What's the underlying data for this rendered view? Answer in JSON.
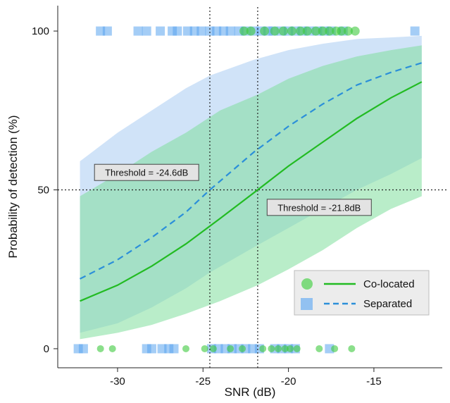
{
  "chart_data": {
    "type": "line",
    "xlabel": "SNR (dB)",
    "ylabel": "Probability of detection (%)",
    "xlim": [
      -33.5,
      -11
    ],
    "ylim": [
      -6,
      108
    ],
    "xticks": [
      -30,
      -25,
      -20,
      -15
    ],
    "xtick_labels": [
      "-30",
      "-25",
      "-20",
      "-15"
    ],
    "yticks": [
      0,
      50,
      100
    ],
    "ytick_labels": [
      "0",
      "50",
      "100"
    ],
    "reference_lines": {
      "y": 50,
      "x": [
        -24.6,
        -21.8
      ]
    },
    "series": [
      {
        "name": "Co-located",
        "style": "solid",
        "color": "#22bb22",
        "band_color": "#7fdf9c",
        "x": [
          -32.2,
          -30,
          -28,
          -26,
          -24,
          -21.8,
          -20,
          -18,
          -16,
          -14,
          -12.2
        ],
        "y": [
          15,
          20,
          26,
          33,
          41,
          50,
          57.5,
          65,
          72.5,
          79,
          84
        ],
        "lower": [
          3,
          5,
          7.5,
          11,
          15,
          20,
          25,
          31,
          38,
          44,
          48
        ],
        "upper": [
          48,
          55,
          62,
          68,
          75,
          80,
          85,
          89,
          92,
          94,
          95.5
        ]
      },
      {
        "name": "Separated",
        "style": "dashed",
        "color": "#2b8fd9",
        "band_color": "#bcd7f5",
        "x": [
          -32.2,
          -30,
          -28,
          -26,
          -24.6,
          -22,
          -20,
          -18,
          -16,
          -14,
          -12.2
        ],
        "y": [
          22,
          28,
          35,
          43,
          50,
          62,
          70,
          77,
          83,
          87,
          90
        ],
        "lower": [
          5,
          8,
          13,
          19,
          24,
          32,
          38,
          44,
          50,
          55,
          60
        ],
        "upper": [
          59,
          68,
          75,
          82,
          86,
          91,
          94,
          96,
          97.5,
          98,
          98.5
        ]
      }
    ],
    "raw_points": {
      "colocated_top": [
        -20.8,
        -20.3,
        -19.8,
        -19.3,
        -18.9,
        -18.4,
        -18.0,
        -17.6,
        -17.2,
        -16.9,
        -16.5,
        -16.1,
        -22.6,
        -22.2,
        -21.4
      ],
      "colocated_bottom": [
        -31.0,
        -30.3,
        -26.0,
        -24.9,
        -24.4,
        -23.4,
        -22.7,
        -21.5,
        -21.0,
        -20.6,
        -20.2,
        -19.9,
        -19.5,
        -18.2,
        -17.3,
        -16.3
      ],
      "separated_top": [
        -31.0,
        -30.6,
        -28.8,
        -28.3,
        -27.5,
        -26.8,
        -26.5,
        -25.9,
        -25.5,
        -25.1,
        -24.6,
        -24.2,
        -23.8,
        -23.4,
        -22.9,
        -22.5,
        -22.0,
        -21.6,
        -21.2,
        -20.9,
        -20.4,
        -20.0,
        -19.6,
        -19.2,
        -18.8,
        -18.3,
        -17.9,
        -17.5,
        -16.8,
        -12.6
      ],
      "separated_bottom": [
        -32.3,
        -32.0,
        -28.3,
        -28.0,
        -27.4,
        -27.0,
        -26.7,
        -24.5,
        -24.1,
        -23.7,
        -23.3,
        -22.9,
        -22.5,
        -22.1,
        -21.7,
        -20.8,
        -20.4,
        -20.0,
        -19.6,
        -17.6
      ]
    },
    "annotations": [
      {
        "text": "Threshold = -24.6dB",
        "x": -28.3,
        "y": 55.5
      },
      {
        "text": "Threshold = -21.8dB",
        "x": -18.2,
        "y": 44.5
      }
    ],
    "legend": {
      "position": "bottom-right",
      "entries": [
        "Co-located",
        "Separated"
      ]
    },
    "grid": false
  }
}
